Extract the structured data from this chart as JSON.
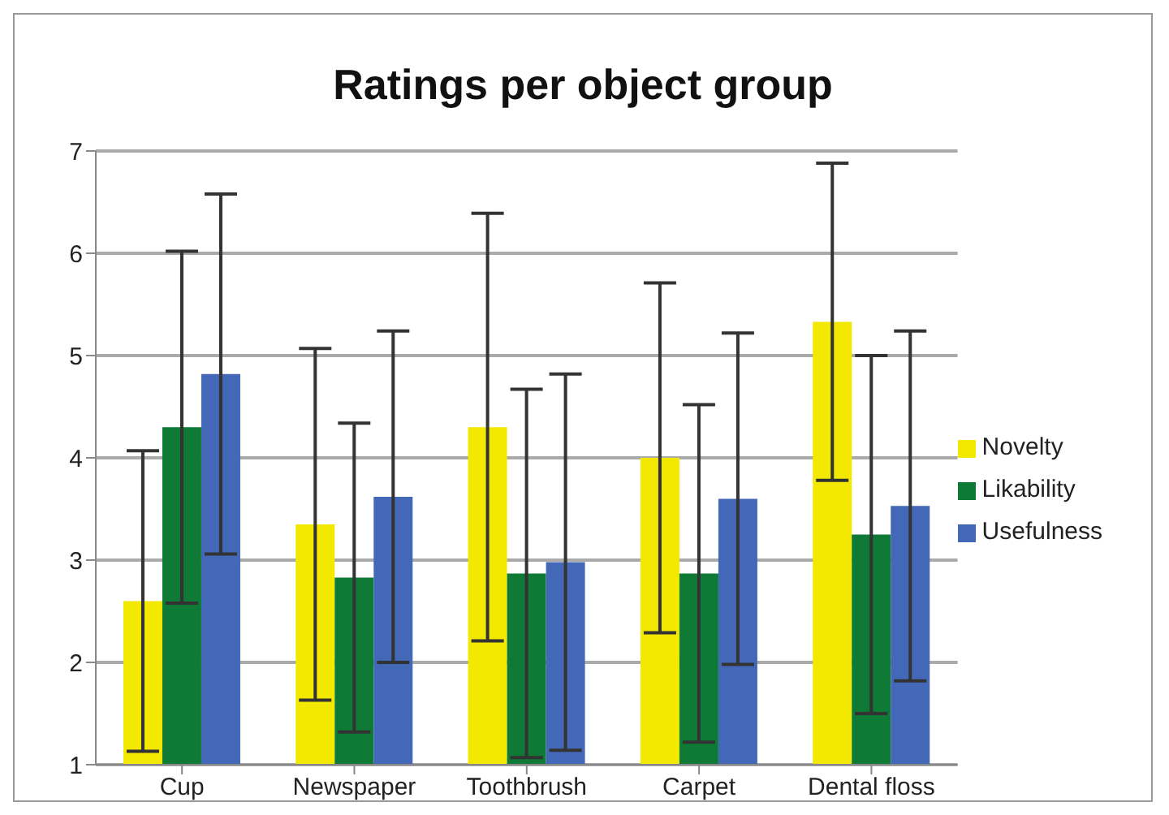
{
  "chart_data": {
    "type": "bar",
    "title": "Ratings per object group",
    "categories": [
      "Cup",
      "Newspaper",
      "Toothbrush",
      "Carpet",
      "Dental floss"
    ],
    "series": [
      {
        "name": "Novelty",
        "color": "#f2e800",
        "values": [
          2.6,
          3.35,
          4.3,
          4.0,
          5.33
        ],
        "errors": [
          1.47,
          1.72,
          2.09,
          1.71,
          1.55
        ]
      },
      {
        "name": "Likability",
        "color": "#0e7a36",
        "values": [
          4.3,
          2.83,
          2.87,
          2.87,
          3.25
        ],
        "errors": [
          1.72,
          1.51,
          1.8,
          1.65,
          1.75
        ]
      },
      {
        "name": "Usefulness",
        "color": "#4468b8",
        "values": [
          4.82,
          3.62,
          2.98,
          3.6,
          3.53
        ],
        "errors": [
          1.76,
          1.62,
          1.84,
          1.62,
          1.71
        ]
      }
    ],
    "ylim": [
      1,
      7
    ],
    "yticks": [
      1,
      2,
      3,
      4,
      5,
      6,
      7
    ],
    "grid": "y",
    "legend": "right"
  }
}
